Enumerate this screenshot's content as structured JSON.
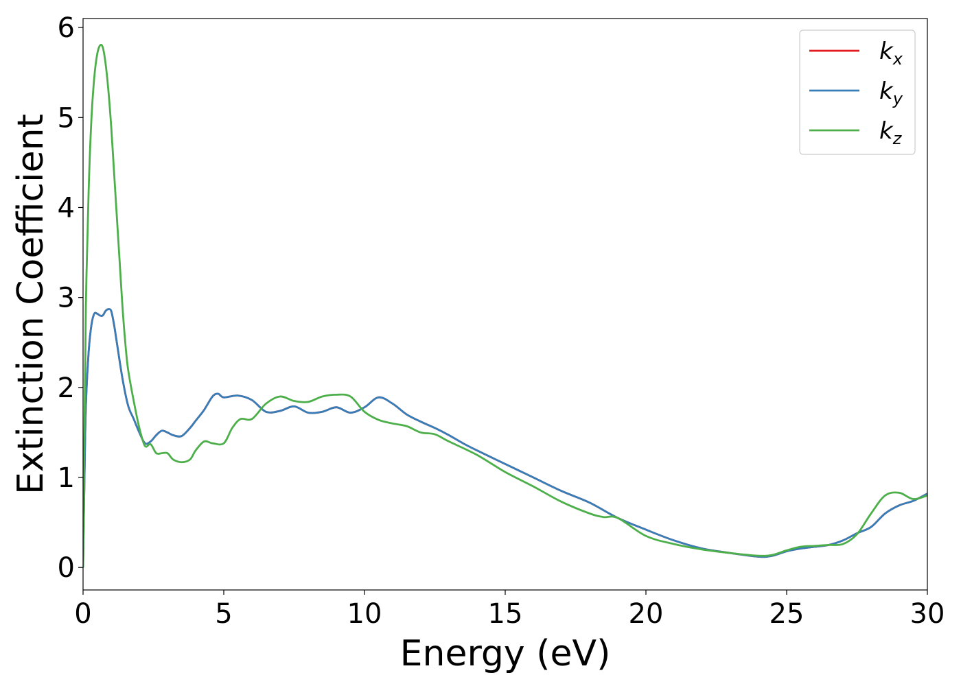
{
  "chart_data": {
    "type": "line",
    "xlabel": "Energy (eV)",
    "ylabel": "Extinction Coefficient",
    "xlim": [
      0,
      30
    ],
    "ylim": [
      -0.25,
      6.1
    ],
    "xticks": [
      0,
      5,
      10,
      15,
      20,
      25,
      30
    ],
    "xtick_labels": [
      "0",
      "5",
      "10",
      "15",
      "20",
      "25",
      "30"
    ],
    "yticks": [
      0,
      1,
      2,
      3,
      4,
      5,
      6
    ],
    "ytick_labels": [
      "0",
      "1",
      "2",
      "3",
      "4",
      "5",
      "6"
    ],
    "grid": false,
    "legend_position": "top-right",
    "series": [
      {
        "name": "k",
        "subscript": "x",
        "color": "#e41a1c",
        "x": [
          0,
          0.05,
          0.1,
          0.2,
          0.3,
          0.4,
          0.5,
          0.6,
          0.7,
          0.8,
          0.9,
          1.0,
          1.1,
          1.2,
          1.4,
          1.6,
          1.8,
          2.0,
          2.2,
          2.4,
          2.6,
          2.8,
          3.0,
          3.2,
          3.5,
          3.8,
          4.0,
          4.3,
          4.6,
          4.8,
          5.0,
          5.5,
          6.0,
          6.5,
          7.0,
          7.5,
          8.0,
          8.5,
          9.0,
          9.5,
          10.0,
          10.5,
          11.0,
          11.5,
          12.0,
          12.5,
          13.0,
          13.5,
          14.0,
          15.0,
          16.0,
          17.0,
          18.0,
          19.0,
          20.0,
          21.0,
          22.0,
          23.0,
          24.0,
          24.5,
          25.0,
          25.5,
          26.0,
          26.5,
          27.0,
          27.5,
          28.0,
          28.5,
          29.0,
          29.5,
          30.0
        ],
        "y": [
          0,
          1.0,
          1.8,
          2.4,
          2.7,
          2.82,
          2.82,
          2.8,
          2.8,
          2.85,
          2.87,
          2.85,
          2.7,
          2.5,
          2.1,
          1.8,
          1.65,
          1.5,
          1.38,
          1.4,
          1.47,
          1.52,
          1.5,
          1.47,
          1.46,
          1.55,
          1.63,
          1.75,
          1.9,
          1.93,
          1.89,
          1.91,
          1.86,
          1.73,
          1.74,
          1.79,
          1.72,
          1.73,
          1.78,
          1.72,
          1.78,
          1.89,
          1.82,
          1.7,
          1.62,
          1.55,
          1.47,
          1.38,
          1.3,
          1.15,
          1.0,
          0.85,
          0.72,
          0.55,
          0.42,
          0.3,
          0.21,
          0.16,
          0.12,
          0.13,
          0.18,
          0.21,
          0.23,
          0.25,
          0.3,
          0.38,
          0.45,
          0.6,
          0.69,
          0.74,
          0.82
        ]
      },
      {
        "name": "k",
        "subscript": "y",
        "color": "#377eb8",
        "x": [
          0,
          0.05,
          0.1,
          0.2,
          0.3,
          0.4,
          0.5,
          0.6,
          0.7,
          0.8,
          0.9,
          1.0,
          1.1,
          1.2,
          1.4,
          1.6,
          1.8,
          2.0,
          2.2,
          2.4,
          2.6,
          2.8,
          3.0,
          3.2,
          3.5,
          3.8,
          4.0,
          4.3,
          4.6,
          4.8,
          5.0,
          5.5,
          6.0,
          6.5,
          7.0,
          7.5,
          8.0,
          8.5,
          9.0,
          9.5,
          10.0,
          10.5,
          11.0,
          11.5,
          12.0,
          12.5,
          13.0,
          13.5,
          14.0,
          15.0,
          16.0,
          17.0,
          18.0,
          19.0,
          20.0,
          21.0,
          22.0,
          23.0,
          24.0,
          24.5,
          25.0,
          25.5,
          26.0,
          26.5,
          27.0,
          27.5,
          28.0,
          28.5,
          29.0,
          29.5,
          30.0
        ],
        "y": [
          0,
          1.0,
          1.8,
          2.4,
          2.7,
          2.82,
          2.82,
          2.8,
          2.8,
          2.85,
          2.87,
          2.85,
          2.7,
          2.5,
          2.1,
          1.8,
          1.65,
          1.5,
          1.38,
          1.4,
          1.47,
          1.52,
          1.5,
          1.47,
          1.46,
          1.55,
          1.63,
          1.75,
          1.9,
          1.93,
          1.89,
          1.91,
          1.86,
          1.73,
          1.74,
          1.79,
          1.72,
          1.73,
          1.78,
          1.72,
          1.78,
          1.89,
          1.82,
          1.7,
          1.62,
          1.55,
          1.47,
          1.38,
          1.3,
          1.15,
          1.0,
          0.85,
          0.72,
          0.55,
          0.42,
          0.3,
          0.21,
          0.16,
          0.12,
          0.13,
          0.18,
          0.21,
          0.23,
          0.25,
          0.3,
          0.38,
          0.45,
          0.6,
          0.69,
          0.74,
          0.82
        ]
      },
      {
        "name": "k",
        "subscript": "z",
        "color": "#4daf4a",
        "x": [
          0,
          0.05,
          0.1,
          0.2,
          0.3,
          0.4,
          0.5,
          0.6,
          0.7,
          0.8,
          0.9,
          1.0,
          1.1,
          1.2,
          1.3,
          1.4,
          1.5,
          1.6,
          1.8,
          2.0,
          2.2,
          2.4,
          2.6,
          2.8,
          3.0,
          3.2,
          3.5,
          3.8,
          4.0,
          4.3,
          4.6,
          5.0,
          5.3,
          5.6,
          6.0,
          6.5,
          7.0,
          7.5,
          8.0,
          8.5,
          9.0,
          9.5,
          10.0,
          10.5,
          11.0,
          11.5,
          12.0,
          12.5,
          13.0,
          14.0,
          15.0,
          16.0,
          17.0,
          18.0,
          18.5,
          19.0,
          20.0,
          21.0,
          22.0,
          23.0,
          24.0,
          24.5,
          25.0,
          25.5,
          26.0,
          26.5,
          27.0,
          27.5,
          28.0,
          28.5,
          29.0,
          29.5,
          30.0
        ],
        "y": [
          0,
          1.5,
          2.9,
          4.2,
          5.0,
          5.45,
          5.7,
          5.8,
          5.78,
          5.6,
          5.3,
          4.9,
          4.4,
          3.9,
          3.4,
          2.9,
          2.5,
          2.2,
          1.85,
          1.55,
          1.35,
          1.37,
          1.27,
          1.27,
          1.27,
          1.2,
          1.17,
          1.2,
          1.3,
          1.4,
          1.38,
          1.38,
          1.55,
          1.65,
          1.65,
          1.82,
          1.9,
          1.85,
          1.84,
          1.9,
          1.92,
          1.9,
          1.73,
          1.64,
          1.6,
          1.57,
          1.5,
          1.48,
          1.4,
          1.25,
          1.06,
          0.9,
          0.73,
          0.6,
          0.56,
          0.55,
          0.35,
          0.26,
          0.2,
          0.16,
          0.13,
          0.14,
          0.19,
          0.23,
          0.24,
          0.25,
          0.26,
          0.37,
          0.6,
          0.8,
          0.83,
          0.76,
          0.8
        ]
      }
    ]
  }
}
